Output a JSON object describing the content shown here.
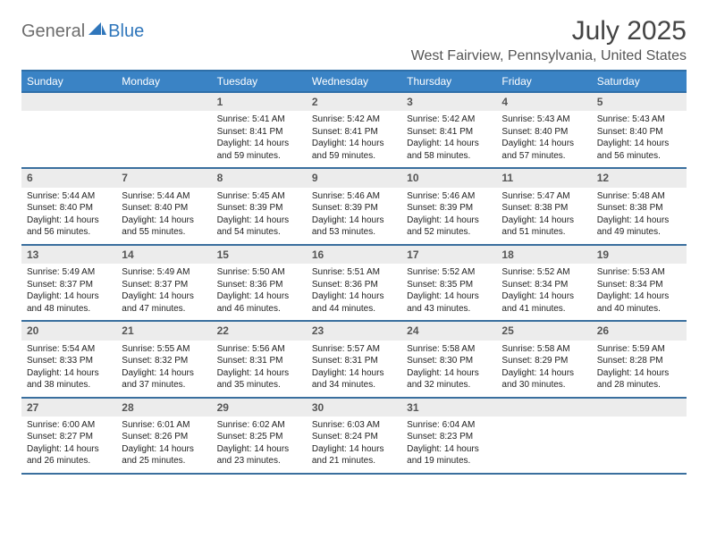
{
  "logo": {
    "part1": "General",
    "part2": "Blue"
  },
  "title": "July 2025",
  "location": "West Fairview, Pennsylvania, United States",
  "colors": {
    "header_bg": "#3a83c5",
    "header_border": "#2f6fa8",
    "daynum_bg": "#ececec",
    "week_border": "#3a6f9e",
    "logo_gray": "#6d6d6d",
    "logo_blue": "#2f76bb"
  },
  "dow": [
    "Sunday",
    "Monday",
    "Tuesday",
    "Wednesday",
    "Thursday",
    "Friday",
    "Saturday"
  ],
  "first_dow": 2,
  "days": [
    {
      "n": 1,
      "sunrise": "5:41 AM",
      "sunset": "8:41 PM",
      "daylight": "14 hours and 59 minutes."
    },
    {
      "n": 2,
      "sunrise": "5:42 AM",
      "sunset": "8:41 PM",
      "daylight": "14 hours and 59 minutes."
    },
    {
      "n": 3,
      "sunrise": "5:42 AM",
      "sunset": "8:41 PM",
      "daylight": "14 hours and 58 minutes."
    },
    {
      "n": 4,
      "sunrise": "5:43 AM",
      "sunset": "8:40 PM",
      "daylight": "14 hours and 57 minutes."
    },
    {
      "n": 5,
      "sunrise": "5:43 AM",
      "sunset": "8:40 PM",
      "daylight": "14 hours and 56 minutes."
    },
    {
      "n": 6,
      "sunrise": "5:44 AM",
      "sunset": "8:40 PM",
      "daylight": "14 hours and 56 minutes."
    },
    {
      "n": 7,
      "sunrise": "5:44 AM",
      "sunset": "8:40 PM",
      "daylight": "14 hours and 55 minutes."
    },
    {
      "n": 8,
      "sunrise": "5:45 AM",
      "sunset": "8:39 PM",
      "daylight": "14 hours and 54 minutes."
    },
    {
      "n": 9,
      "sunrise": "5:46 AM",
      "sunset": "8:39 PM",
      "daylight": "14 hours and 53 minutes."
    },
    {
      "n": 10,
      "sunrise": "5:46 AM",
      "sunset": "8:39 PM",
      "daylight": "14 hours and 52 minutes."
    },
    {
      "n": 11,
      "sunrise": "5:47 AM",
      "sunset": "8:38 PM",
      "daylight": "14 hours and 51 minutes."
    },
    {
      "n": 12,
      "sunrise": "5:48 AM",
      "sunset": "8:38 PM",
      "daylight": "14 hours and 49 minutes."
    },
    {
      "n": 13,
      "sunrise": "5:49 AM",
      "sunset": "8:37 PM",
      "daylight": "14 hours and 48 minutes."
    },
    {
      "n": 14,
      "sunrise": "5:49 AM",
      "sunset": "8:37 PM",
      "daylight": "14 hours and 47 minutes."
    },
    {
      "n": 15,
      "sunrise": "5:50 AM",
      "sunset": "8:36 PM",
      "daylight": "14 hours and 46 minutes."
    },
    {
      "n": 16,
      "sunrise": "5:51 AM",
      "sunset": "8:36 PM",
      "daylight": "14 hours and 44 minutes."
    },
    {
      "n": 17,
      "sunrise": "5:52 AM",
      "sunset": "8:35 PM",
      "daylight": "14 hours and 43 minutes."
    },
    {
      "n": 18,
      "sunrise": "5:52 AM",
      "sunset": "8:34 PM",
      "daylight": "14 hours and 41 minutes."
    },
    {
      "n": 19,
      "sunrise": "5:53 AM",
      "sunset": "8:34 PM",
      "daylight": "14 hours and 40 minutes."
    },
    {
      "n": 20,
      "sunrise": "5:54 AM",
      "sunset": "8:33 PM",
      "daylight": "14 hours and 38 minutes."
    },
    {
      "n": 21,
      "sunrise": "5:55 AM",
      "sunset": "8:32 PM",
      "daylight": "14 hours and 37 minutes."
    },
    {
      "n": 22,
      "sunrise": "5:56 AM",
      "sunset": "8:31 PM",
      "daylight": "14 hours and 35 minutes."
    },
    {
      "n": 23,
      "sunrise": "5:57 AM",
      "sunset": "8:31 PM",
      "daylight": "14 hours and 34 minutes."
    },
    {
      "n": 24,
      "sunrise": "5:58 AM",
      "sunset": "8:30 PM",
      "daylight": "14 hours and 32 minutes."
    },
    {
      "n": 25,
      "sunrise": "5:58 AM",
      "sunset": "8:29 PM",
      "daylight": "14 hours and 30 minutes."
    },
    {
      "n": 26,
      "sunrise": "5:59 AM",
      "sunset": "8:28 PM",
      "daylight": "14 hours and 28 minutes."
    },
    {
      "n": 27,
      "sunrise": "6:00 AM",
      "sunset": "8:27 PM",
      "daylight": "14 hours and 26 minutes."
    },
    {
      "n": 28,
      "sunrise": "6:01 AM",
      "sunset": "8:26 PM",
      "daylight": "14 hours and 25 minutes."
    },
    {
      "n": 29,
      "sunrise": "6:02 AM",
      "sunset": "8:25 PM",
      "daylight": "14 hours and 23 minutes."
    },
    {
      "n": 30,
      "sunrise": "6:03 AM",
      "sunset": "8:24 PM",
      "daylight": "14 hours and 21 minutes."
    },
    {
      "n": 31,
      "sunrise": "6:04 AM",
      "sunset": "8:23 PM",
      "daylight": "14 hours and 19 minutes."
    }
  ],
  "labels": {
    "sunrise": "Sunrise:",
    "sunset": "Sunset:",
    "daylight": "Daylight:"
  }
}
